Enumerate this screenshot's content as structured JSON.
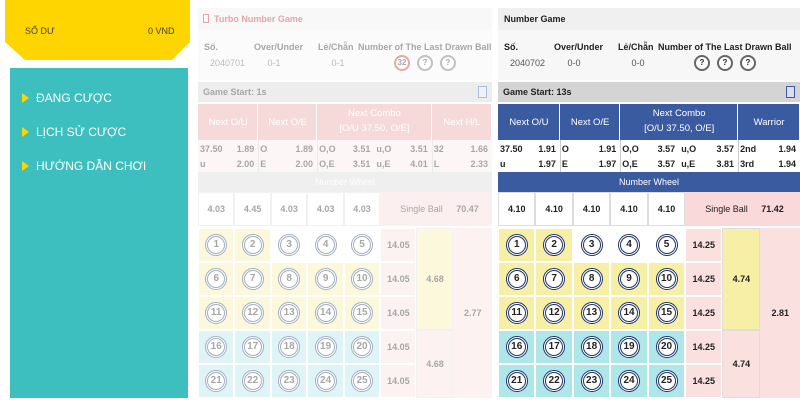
{
  "sidebar": {
    "balance_label": "SỐ DƯ",
    "balance_value": "0 VND",
    "menu": [
      "ĐANG CƯỢC",
      "LỊCH SỬ CƯỢC",
      "HƯỚNG DẪN CHƠI"
    ]
  },
  "games": [
    {
      "title": "Turbo Number Game",
      "round_label": "Số.",
      "round": "2040701",
      "ou_label": "Over/Under",
      "ou": "0-1",
      "oe_label": "Lẻ/Chẵn",
      "oe": "0-1",
      "last_label": "Number of The Last Drawn Ball",
      "last_balls": [
        "32",
        "?",
        "?"
      ],
      "start": "Game Start: 1s",
      "bet_headers": [
        "Next O/U",
        "Next O/E",
        "Next Combo",
        "Next H/L"
      ],
      "combo_sub": "[O/U 37.50, O/E]",
      "odds": [
        [
          "37.50",
          "1.89",
          "O",
          "1.89",
          "O,O",
          "3.51",
          "u,O",
          "3.51",
          "32",
          "1.66"
        ],
        [
          "u",
          "2.00",
          "E",
          "2.00",
          "O,E",
          "3.51",
          "u,E",
          "4.01",
          "L",
          "2.33"
        ]
      ],
      "wheel_label": "Number Wheel",
      "wheel_odds": [
        "4.03",
        "4.45",
        "4.03",
        "4.03",
        "4.03"
      ],
      "single_label": "Single Ball",
      "single_odds": "70.47",
      "balls": [
        [
          1,
          2,
          3,
          4,
          5
        ],
        [
          6,
          7,
          8,
          9,
          10
        ],
        [
          11,
          12,
          13,
          14,
          15
        ],
        [
          16,
          17,
          18,
          19,
          20
        ],
        [
          21,
          22,
          23,
          24,
          25
        ]
      ],
      "row_odds": [
        "14.05",
        "14.05",
        "14.05",
        "14.05",
        "14.05"
      ],
      "group_odds": [
        "4.68",
        "4.68"
      ],
      "total_odds": "2.77"
    },
    {
      "title": "Number Game",
      "round_label": "Số.",
      "round": "2040702",
      "ou_label": "Over/Under",
      "ou": "0-0",
      "oe_label": "Lẻ/Chẵn",
      "oe": "0-0",
      "last_label": "Number of The Last Drawn Ball",
      "last_balls": [
        "?",
        "?",
        "?"
      ],
      "start": "Game Start: 13s",
      "bet_headers": [
        "Next O/U",
        "Next O/E",
        "Next Combo",
        "Warrior"
      ],
      "combo_sub": "[O/U 37.50, O/E]",
      "odds": [
        [
          "37.50",
          "1.91",
          "O",
          "1.91",
          "O,O",
          "3.57",
          "u,O",
          "3.57",
          "2nd",
          "1.94"
        ],
        [
          "u",
          "1.97",
          "E",
          "1.97",
          "O,E",
          "3.57",
          "u,E",
          "3.81",
          "3rd",
          "1.94"
        ]
      ],
      "wheel_label": "Number Wheel",
      "wheel_odds": [
        "4.10",
        "4.10",
        "4.10",
        "4.10",
        "4.10"
      ],
      "single_label": "Single Ball",
      "single_odds": "71.42",
      "balls": [
        [
          1,
          2,
          3,
          4,
          5
        ],
        [
          6,
          7,
          8,
          9,
          10
        ],
        [
          11,
          12,
          13,
          14,
          15
        ],
        [
          16,
          17,
          18,
          19,
          20
        ],
        [
          21,
          22,
          23,
          24,
          25
        ]
      ],
      "row_odds": [
        "14.25",
        "14.25",
        "14.25",
        "14.25",
        "14.25"
      ],
      "group_odds": [
        "4.74",
        "4.74"
      ],
      "total_odds": "2.81"
    }
  ]
}
